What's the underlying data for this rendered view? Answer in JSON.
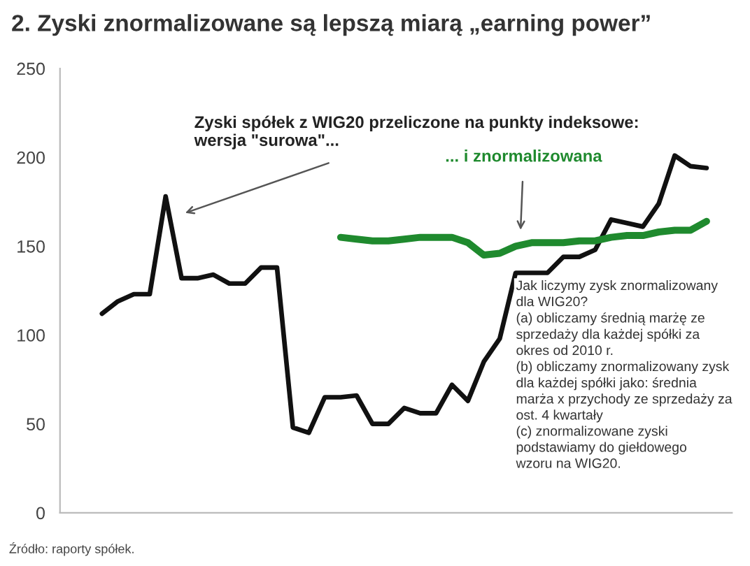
{
  "chart_data": {
    "type": "line",
    "title": "2. Zyski znormalizowane są lepszą miarą „earning power”",
    "categories": [
      null,
      null,
      null,
      null,
      null,
      null,
      null,
      null,
      null,
      null,
      null,
      null,
      null,
      null,
      null,
      null,
      null,
      null,
      null,
      null,
      null,
      null,
      null,
      null,
      null,
      null,
      null,
      null,
      null,
      null,
      null,
      null,
      null,
      null,
      null,
      null,
      null,
      null,
      null
    ],
    "series": [
      {
        "color": "#111111",
        "values": [
          112,
          119,
          123,
          123,
          178,
          132,
          132,
          134,
          129,
          129,
          138,
          138,
          48,
          45,
          65,
          65,
          66,
          50,
          50,
          59,
          56,
          56,
          72,
          63,
          85,
          98,
          135,
          135,
          135,
          144,
          144,
          148,
          165,
          163,
          161,
          174,
          201,
          195,
          194
        ]
      },
      {
        "color": "#1f8a2e",
        "values": [
          null,
          null,
          null,
          null,
          null,
          null,
          null,
          null,
          null,
          null,
          null,
          null,
          null,
          null,
          null,
          155,
          154,
          153,
          153,
          154,
          155,
          155,
          155,
          152,
          145,
          146,
          150,
          152,
          152,
          152,
          153,
          153,
          155,
          156,
          156,
          158,
          159,
          159,
          164
        ]
      }
    ],
    "ylim": [
      0,
      250
    ],
    "yticks": [
      0,
      50,
      100,
      150,
      200,
      250
    ],
    "grid": false,
    "legend": false,
    "marker": "none",
    "line_style": "solid",
    "annotations": [
      "Zyski spółek z WIG20 przeliczone na punkty indeksowe:\nwersja \"surowa\"...",
      "... i znormalizowana",
      "Jak liczymy zysk znormalizowany\ndla WIG20?\n(a) obliczamy średnią marżę ze\nsprzedaży dla każdej spółki za\nokres od 2010 r.\n(b) obliczamy znormalizowany zysk\ndla każdej spółki jako: średnia\nmarża x przychody ze sprzedaży za\nost. 4 kwartały\n(c) znormalizowane zyski\npodstawiamy do giełdowego\nwzoru na WIG20.",
      "Źródło: raporty spółek."
    ]
  }
}
